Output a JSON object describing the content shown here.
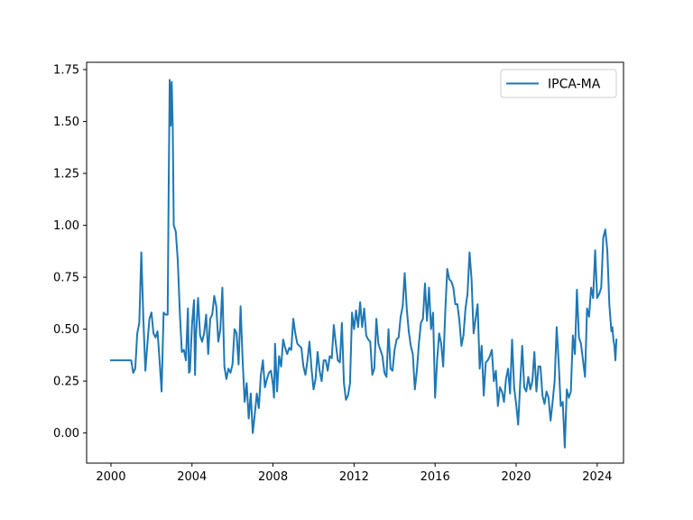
{
  "chart_data": {
    "type": "line",
    "title": "",
    "xlabel": "",
    "ylabel": "",
    "xlim": [
      1998.8,
      2025.3
    ],
    "ylim": [
      -0.145,
      1.785
    ],
    "x_ticks": [
      2000,
      2004,
      2008,
      2012,
      2016,
      2020,
      2024
    ],
    "x_tick_labels": [
      "2000",
      "2004",
      "2008",
      "2012",
      "2016",
      "2020",
      "2024"
    ],
    "y_ticks": [
      0.0,
      0.25,
      0.5,
      0.75,
      1.0,
      1.25,
      1.5,
      1.75
    ],
    "y_tick_labels": [
      "0.00",
      "0.25",
      "0.50",
      "0.75",
      "1.00",
      "1.25",
      "1.50",
      "1.75"
    ],
    "grid": false,
    "legend": {
      "position": "top-right"
    },
    "series": [
      {
        "name": "IPCA-MA",
        "color": "#1f77b4",
        "points": [
          [
            2000.0,
            0.35
          ],
          [
            2000.2,
            0.35
          ],
          [
            2000.4,
            0.35
          ],
          [
            2000.6,
            0.35
          ],
          [
            2000.8,
            0.35
          ],
          [
            2001.0,
            0.35
          ],
          [
            2001.1,
            0.29
          ],
          [
            2001.2,
            0.31
          ],
          [
            2001.3,
            0.48
          ],
          [
            2001.4,
            0.53
          ],
          [
            2001.5,
            0.87
          ],
          [
            2001.6,
            0.55
          ],
          [
            2001.7,
            0.3
          ],
          [
            2001.8,
            0.43
          ],
          [
            2001.9,
            0.55
          ],
          [
            2002.0,
            0.58
          ],
          [
            2002.1,
            0.48
          ],
          [
            2002.2,
            0.46
          ],
          [
            2002.3,
            0.49
          ],
          [
            2002.4,
            0.35
          ],
          [
            2002.5,
            0.2
          ],
          [
            2002.6,
            0.58
          ],
          [
            2002.7,
            0.57
          ],
          [
            2002.8,
            0.57
          ],
          [
            2002.85,
            1.18
          ],
          [
            2002.9,
            1.7
          ],
          [
            2002.95,
            1.48
          ],
          [
            2003.0,
            1.69
          ],
          [
            2003.05,
            1.48
          ],
          [
            2003.1,
            1.0
          ],
          [
            2003.2,
            0.97
          ],
          [
            2003.3,
            0.83
          ],
          [
            2003.4,
            0.58
          ],
          [
            2003.5,
            0.39
          ],
          [
            2003.6,
            0.4
          ],
          [
            2003.7,
            0.35
          ],
          [
            2003.8,
            0.6
          ],
          [
            2003.85,
            0.29
          ],
          [
            2003.9,
            0.3
          ],
          [
            2004.0,
            0.52
          ],
          [
            2004.1,
            0.64
          ],
          [
            2004.15,
            0.28
          ],
          [
            2004.2,
            0.47
          ],
          [
            2004.3,
            0.65
          ],
          [
            2004.4,
            0.47
          ],
          [
            2004.5,
            0.44
          ],
          [
            2004.6,
            0.48
          ],
          [
            2004.7,
            0.57
          ],
          [
            2004.8,
            0.38
          ],
          [
            2004.9,
            0.55
          ],
          [
            2005.0,
            0.57
          ],
          [
            2005.1,
            0.66
          ],
          [
            2005.2,
            0.61
          ],
          [
            2005.3,
            0.44
          ],
          [
            2005.4,
            0.5
          ],
          [
            2005.5,
            0.7
          ],
          [
            2005.6,
            0.32
          ],
          [
            2005.7,
            0.26
          ],
          [
            2005.8,
            0.31
          ],
          [
            2005.9,
            0.29
          ],
          [
            2006.0,
            0.33
          ],
          [
            2006.1,
            0.5
          ],
          [
            2006.2,
            0.48
          ],
          [
            2006.3,
            0.33
          ],
          [
            2006.4,
            0.61
          ],
          [
            2006.5,
            0.35
          ],
          [
            2006.6,
            0.15
          ],
          [
            2006.7,
            0.24
          ],
          [
            2006.8,
            0.07
          ],
          [
            2006.9,
            0.19
          ],
          [
            2007.0,
            0.0
          ],
          [
            2007.1,
            0.09
          ],
          [
            2007.2,
            0.19
          ],
          [
            2007.3,
            0.12
          ],
          [
            2007.4,
            0.28
          ],
          [
            2007.5,
            0.35
          ],
          [
            2007.6,
            0.22
          ],
          [
            2007.7,
            0.26
          ],
          [
            2007.8,
            0.29
          ],
          [
            2007.9,
            0.3
          ],
          [
            2008.0,
            0.23
          ],
          [
            2008.05,
            0.17
          ],
          [
            2008.1,
            0.43
          ],
          [
            2008.2,
            0.2
          ],
          [
            2008.3,
            0.37
          ],
          [
            2008.4,
            0.32
          ],
          [
            2008.5,
            0.45
          ],
          [
            2008.6,
            0.41
          ],
          [
            2008.7,
            0.38
          ],
          [
            2008.8,
            0.41
          ],
          [
            2008.9,
            0.4
          ],
          [
            2009.0,
            0.55
          ],
          [
            2009.1,
            0.48
          ],
          [
            2009.2,
            0.43
          ],
          [
            2009.3,
            0.42
          ],
          [
            2009.4,
            0.41
          ],
          [
            2009.5,
            0.32
          ],
          [
            2009.6,
            0.28
          ],
          [
            2009.7,
            0.35
          ],
          [
            2009.8,
            0.44
          ],
          [
            2009.9,
            0.31
          ],
          [
            2010.0,
            0.21
          ],
          [
            2010.1,
            0.26
          ],
          [
            2010.2,
            0.39
          ],
          [
            2010.3,
            0.3
          ],
          [
            2010.4,
            0.25
          ],
          [
            2010.5,
            0.35
          ],
          [
            2010.6,
            0.35
          ],
          [
            2010.7,
            0.3
          ],
          [
            2010.8,
            0.37
          ],
          [
            2010.9,
            0.36
          ],
          [
            2011.0,
            0.52
          ],
          [
            2011.1,
            0.43
          ],
          [
            2011.2,
            0.35
          ],
          [
            2011.3,
            0.34
          ],
          [
            2011.4,
            0.53
          ],
          [
            2011.5,
            0.24
          ],
          [
            2011.6,
            0.16
          ],
          [
            2011.7,
            0.18
          ],
          [
            2011.8,
            0.24
          ],
          [
            2011.9,
            0.58
          ],
          [
            2012.0,
            0.5
          ],
          [
            2012.1,
            0.59
          ],
          [
            2012.2,
            0.51
          ],
          [
            2012.3,
            0.63
          ],
          [
            2012.4,
            0.51
          ],
          [
            2012.5,
            0.6
          ],
          [
            2012.6,
            0.47
          ],
          [
            2012.7,
            0.45
          ],
          [
            2012.8,
            0.44
          ],
          [
            2012.9,
            0.28
          ],
          [
            2013.0,
            0.31
          ],
          [
            2013.1,
            0.55
          ],
          [
            2013.2,
            0.43
          ],
          [
            2013.3,
            0.4
          ],
          [
            2013.4,
            0.37
          ],
          [
            2013.5,
            0.29
          ],
          [
            2013.6,
            0.27
          ],
          [
            2013.7,
            0.5
          ],
          [
            2013.8,
            0.31
          ],
          [
            2013.9,
            0.3
          ],
          [
            2014.0,
            0.4
          ],
          [
            2014.1,
            0.45
          ],
          [
            2014.2,
            0.46
          ],
          [
            2014.3,
            0.56
          ],
          [
            2014.4,
            0.61
          ],
          [
            2014.5,
            0.77
          ],
          [
            2014.6,
            0.6
          ],
          [
            2014.7,
            0.49
          ],
          [
            2014.8,
            0.42
          ],
          [
            2014.9,
            0.38
          ],
          [
            2015.0,
            0.21
          ],
          [
            2015.1,
            0.3
          ],
          [
            2015.2,
            0.43
          ],
          [
            2015.3,
            0.53
          ],
          [
            2015.4,
            0.55
          ],
          [
            2015.5,
            0.72
          ],
          [
            2015.6,
            0.54
          ],
          [
            2015.7,
            0.7
          ],
          [
            2015.8,
            0.5
          ],
          [
            2015.9,
            0.58
          ],
          [
            2016.0,
            0.17
          ],
          [
            2016.1,
            0.35
          ],
          [
            2016.2,
            0.48
          ],
          [
            2016.3,
            0.43
          ],
          [
            2016.4,
            0.32
          ],
          [
            2016.5,
            0.58
          ],
          [
            2016.6,
            0.79
          ],
          [
            2016.7,
            0.74
          ],
          [
            2016.8,
            0.73
          ],
          [
            2016.9,
            0.7
          ],
          [
            2017.0,
            0.62
          ],
          [
            2017.1,
            0.62
          ],
          [
            2017.2,
            0.54
          ],
          [
            2017.3,
            0.42
          ],
          [
            2017.4,
            0.47
          ],
          [
            2017.5,
            0.6
          ],
          [
            2017.6,
            0.67
          ],
          [
            2017.7,
            0.87
          ],
          [
            2017.8,
            0.74
          ],
          [
            2017.9,
            0.48
          ],
          [
            2018.0,
            0.55
          ],
          [
            2018.1,
            0.62
          ],
          [
            2018.2,
            0.31
          ],
          [
            2018.3,
            0.42
          ],
          [
            2018.4,
            0.18
          ],
          [
            2018.5,
            0.34
          ],
          [
            2018.6,
            0.35
          ],
          [
            2018.7,
            0.37
          ],
          [
            2018.8,
            0.4
          ],
          [
            2018.9,
            0.25
          ],
          [
            2019.0,
            0.3
          ],
          [
            2019.1,
            0.13
          ],
          [
            2019.2,
            0.22
          ],
          [
            2019.3,
            0.2
          ],
          [
            2019.4,
            0.15
          ],
          [
            2019.5,
            0.26
          ],
          [
            2019.6,
            0.31
          ],
          [
            2019.7,
            0.19
          ],
          [
            2019.8,
            0.45
          ],
          [
            2019.9,
            0.22
          ],
          [
            2020.0,
            0.14
          ],
          [
            2020.1,
            0.04
          ],
          [
            2020.2,
            0.24
          ],
          [
            2020.3,
            0.42
          ],
          [
            2020.4,
            0.22
          ],
          [
            2020.5,
            0.2
          ],
          [
            2020.6,
            0.27
          ],
          [
            2020.7,
            0.21
          ],
          [
            2020.8,
            0.25
          ],
          [
            2020.9,
            0.39
          ],
          [
            2021.0,
            0.2
          ],
          [
            2021.1,
            0.32
          ],
          [
            2021.2,
            0.32
          ],
          [
            2021.3,
            0.18
          ],
          [
            2021.4,
            0.14
          ],
          [
            2021.5,
            0.2
          ],
          [
            2021.6,
            0.17
          ],
          [
            2021.7,
            0.06
          ],
          [
            2021.8,
            0.15
          ],
          [
            2021.9,
            0.25
          ],
          [
            2022.0,
            0.51
          ],
          [
            2022.1,
            0.34
          ],
          [
            2022.2,
            0.13
          ],
          [
            2022.3,
            0.15
          ],
          [
            2022.4,
            -0.07
          ],
          [
            2022.5,
            0.21
          ],
          [
            2022.6,
            0.17
          ],
          [
            2022.7,
            0.2
          ],
          [
            2022.8,
            0.47
          ],
          [
            2022.9,
            0.38
          ],
          [
            2023.0,
            0.69
          ],
          [
            2023.1,
            0.46
          ],
          [
            2023.2,
            0.43
          ],
          [
            2023.3,
            0.35
          ],
          [
            2023.4,
            0.27
          ],
          [
            2023.5,
            0.6
          ],
          [
            2023.6,
            0.56
          ],
          [
            2023.7,
            0.7
          ],
          [
            2023.8,
            0.65
          ],
          [
            2023.9,
            0.88
          ],
          [
            2024.0,
            0.65
          ],
          [
            2024.1,
            0.67
          ],
          [
            2024.2,
            0.7
          ],
          [
            2024.3,
            0.94
          ],
          [
            2024.4,
            0.98
          ],
          [
            2024.5,
            0.88
          ],
          [
            2024.6,
            0.62
          ],
          [
            2024.7,
            0.49
          ],
          [
            2024.75,
            0.51
          ],
          [
            2024.8,
            0.45
          ],
          [
            2024.85,
            0.42
          ],
          [
            2024.9,
            0.35
          ],
          [
            2024.95,
            0.45
          ]
        ]
      }
    ]
  }
}
